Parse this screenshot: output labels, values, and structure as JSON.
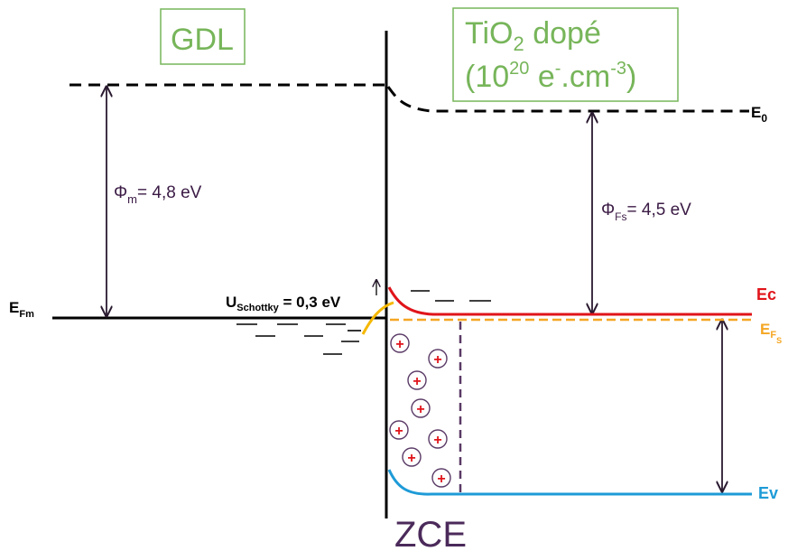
{
  "metal_label": "GDL",
  "semiconductor_label": {
    "line1_base": "TiO",
    "line1_sub": "2",
    "line1_rest": " dopé",
    "line2_open": "(10",
    "line2_sup1": "20",
    "line2_mid": " e",
    "line2_sup2": "-",
    "line2_end1": ".cm",
    "line2_sup3": "-3",
    "line2_close": ")"
  },
  "E0": {
    "base": "E",
    "sub": "0"
  },
  "phi_m": {
    "base": "Φ",
    "sub": "m",
    "value": "= 4,8 eV"
  },
  "phi_Fs": {
    "base": "Φ",
    "sub": "Fs",
    "value": "= 4,5 eV"
  },
  "EFm": {
    "base": "E",
    "sub": "Fm"
  },
  "U_schottky": {
    "base": "U",
    "sub": "Schottky",
    "value": " = 0,3 eV"
  },
  "Ec": "Ec",
  "EFs": {
    "base": "E",
    "sub": "F",
    "subsub": "S"
  },
  "Ev": "Ev",
  "zce": "ZCE",
  "hole_symbol": "+",
  "colors": {
    "metal_box": "#77b55a",
    "conduction_band": "#e0141a",
    "valence_band": "#1e9bd7",
    "fermi_semiconductor": "#f5a623",
    "depletion": "#5a3a66"
  }
}
